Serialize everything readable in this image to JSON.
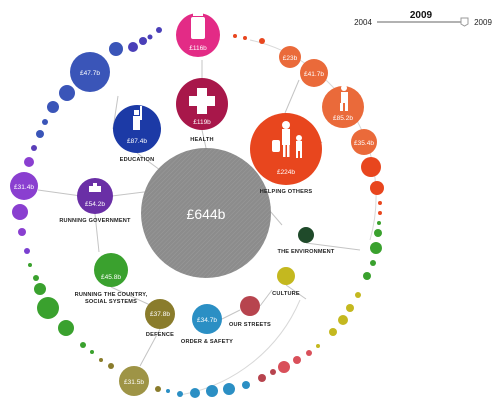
{
  "total": "£644b",
  "slider": {
    "start": "2004",
    "selected": "2009",
    "end": "2009"
  },
  "categories": [
    {
      "id": "health",
      "label": "HEALTH",
      "value": "£119b",
      "color": "#a8174a",
      "icon": "medical-cross-icon"
    },
    {
      "id": "education",
      "label": "EDUCATION",
      "value": "£87.4b",
      "color": "#1c3aa6",
      "icon": "graduate-icon"
    },
    {
      "id": "running-government",
      "label": "RUNNING GOVERNMENT",
      "value": "£54.2b",
      "color": "#6a2fa6",
      "icon": "government-building-icon"
    },
    {
      "id": "running-country",
      "label_lines": [
        "RUNNING THE COUNTRY,",
        "SOCIAL SYSTEMS"
      ],
      "value": "£45.8b",
      "color": "#3aa12e"
    },
    {
      "id": "defence",
      "label": "DEFENCE",
      "value": "£37.8b",
      "color": "#8a7c2c"
    },
    {
      "id": "order-safety",
      "label": "ORDER & SAFETY",
      "value": "£34.7b",
      "color": "#2b8fc4"
    },
    {
      "id": "our-streets",
      "label": "OUR STREETS",
      "value": "",
      "color": "#b7444e"
    },
    {
      "id": "culture",
      "label": "CULTURE",
      "value": "",
      "color": "#c4b81f"
    },
    {
      "id": "environment",
      "label": "THE ENVIRONMENT",
      "value": "",
      "color": "#1f4a2a"
    },
    {
      "id": "helping-others",
      "label": "HELPING OTHERS",
      "value": "£224b",
      "color": "#e8461e",
      "icon": "people-icon"
    }
  ],
  "outer_values": {
    "health_top": "£116b",
    "education_outer": "£47.7b",
    "government_outer": "£31.4b",
    "defence_outer": "£31.5b",
    "help_1": "£23b",
    "help_2": "£41.7b",
    "help_3": "£85.2b",
    "help_4": "£35.4b"
  }
}
